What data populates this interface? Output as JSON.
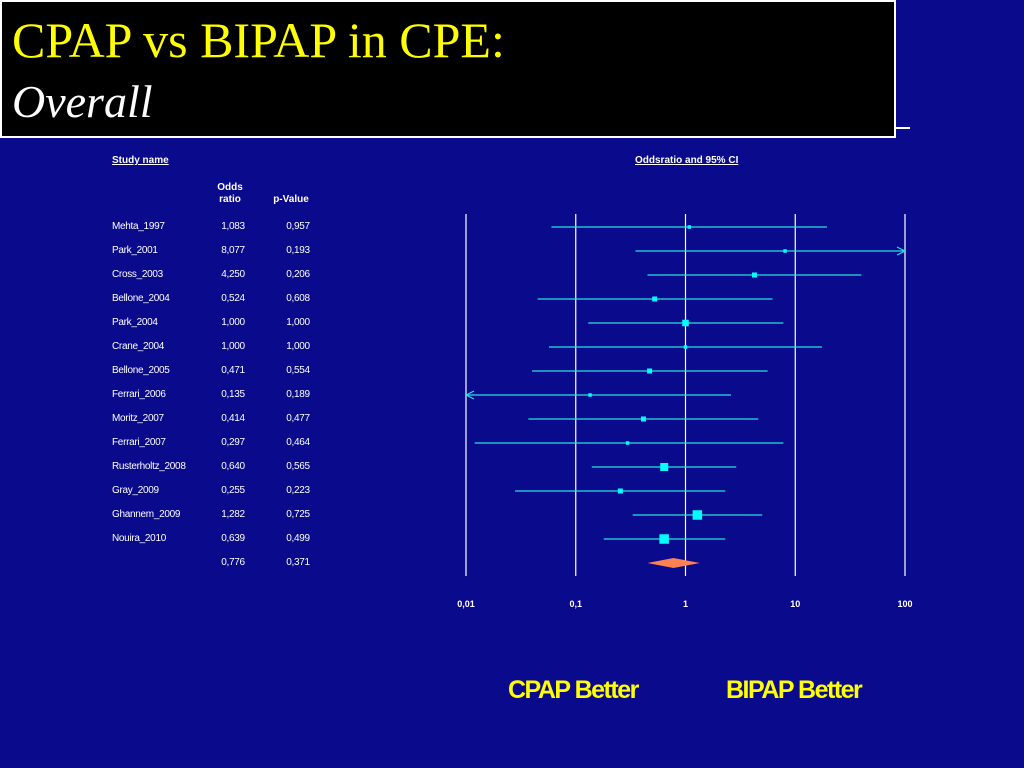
{
  "title": {
    "line1": "CPAP vs BIPAP in CPE:",
    "line2": "Overall"
  },
  "headers": {
    "study_name": "Study name",
    "plot_header": "Oddsratio and 95% CI",
    "odds_ratio_line1": "Odds",
    "odds_ratio_line2": "ratio",
    "p_value": "p-Value"
  },
  "footer": {
    "left_label": "CPAP Better",
    "right_label": "BIPAP Better"
  },
  "colors": {
    "background": "#0a0a8c",
    "ci_line": "#29e0e0",
    "marker": "#00ffff",
    "summary_diamond": "#ff8050",
    "title_text": "#ffff00"
  },
  "chart_data": {
    "type": "forest",
    "x_scale": "log",
    "xlim": [
      0.01,
      100
    ],
    "x_ticks": [
      0.01,
      0.1,
      1,
      10,
      100
    ],
    "x_tick_labels": [
      "0,01",
      "0,1",
      "1",
      "10",
      "100"
    ],
    "reference_line": 1,
    "studies": [
      {
        "name": "Mehta_1997",
        "or_label": "1,083",
        "p_label": "0,957",
        "or": 1.083,
        "lower": 0.06,
        "upper": 19.5,
        "weight": 1
      },
      {
        "name": "Park_2001",
        "or_label": "8,077",
        "p_label": "0,193",
        "or": 8.077,
        "lower": 0.35,
        "upper": 100,
        "arrow": "right",
        "weight": 1
      },
      {
        "name": "Cross_2003",
        "or_label": "4,250",
        "p_label": "0,206",
        "or": 4.25,
        "lower": 0.45,
        "upper": 40,
        "weight": 2
      },
      {
        "name": "Bellone_2004",
        "or_label": "0,524",
        "p_label": "0,608",
        "or": 0.524,
        "lower": 0.045,
        "upper": 6.2,
        "weight": 2
      },
      {
        "name": "Park_2004",
        "or_label": "1,000",
        "p_label": "1,000",
        "or": 1.0,
        "lower": 0.13,
        "upper": 7.8,
        "weight": 3
      },
      {
        "name": "Crane_2004",
        "or_label": "1,000",
        "p_label": "1,000",
        "or": 1.0,
        "lower": 0.057,
        "upper": 17.5,
        "weight": 1
      },
      {
        "name": "Bellone_2005",
        "or_label": "0,471",
        "p_label": "0,554",
        "or": 0.471,
        "lower": 0.04,
        "upper": 5.6,
        "weight": 2
      },
      {
        "name": "Ferrari_2006",
        "or_label": "0,135",
        "p_label": "0,189",
        "or": 0.135,
        "lower": 0.01,
        "upper": 2.6,
        "arrow": "left",
        "weight": 1
      },
      {
        "name": "Moritz_2007",
        "or_label": "0,414",
        "p_label": "0,477",
        "or": 0.414,
        "lower": 0.037,
        "upper": 4.6,
        "weight": 2
      },
      {
        "name": "Ferrari_2007",
        "or_label": "0,297",
        "p_label": "0,464",
        "or": 0.297,
        "lower": 0.012,
        "upper": 7.8,
        "weight": 1
      },
      {
        "name": "Rusterholtz_2008",
        "or_label": "0,640",
        "p_label": "0,565",
        "or": 0.64,
        "lower": 0.14,
        "upper": 2.9,
        "weight": 4
      },
      {
        "name": "Gray_2009",
        "or_label": "0,255",
        "p_label": "0,223",
        "or": 0.255,
        "lower": 0.028,
        "upper": 2.3,
        "weight": 2
      },
      {
        "name": "Ghannem_2009",
        "or_label": "1,282",
        "p_label": "0,725",
        "or": 1.282,
        "lower": 0.33,
        "upper": 5.0,
        "weight": 5
      },
      {
        "name": "Nouira_2010",
        "or_label": "0,639",
        "p_label": "0,499",
        "or": 0.639,
        "lower": 0.18,
        "upper": 2.3,
        "weight": 5
      }
    ],
    "summary": {
      "or_label": "0,776",
      "p_label": "0,371",
      "or": 0.776,
      "lower": 0.45,
      "upper": 1.35
    }
  }
}
